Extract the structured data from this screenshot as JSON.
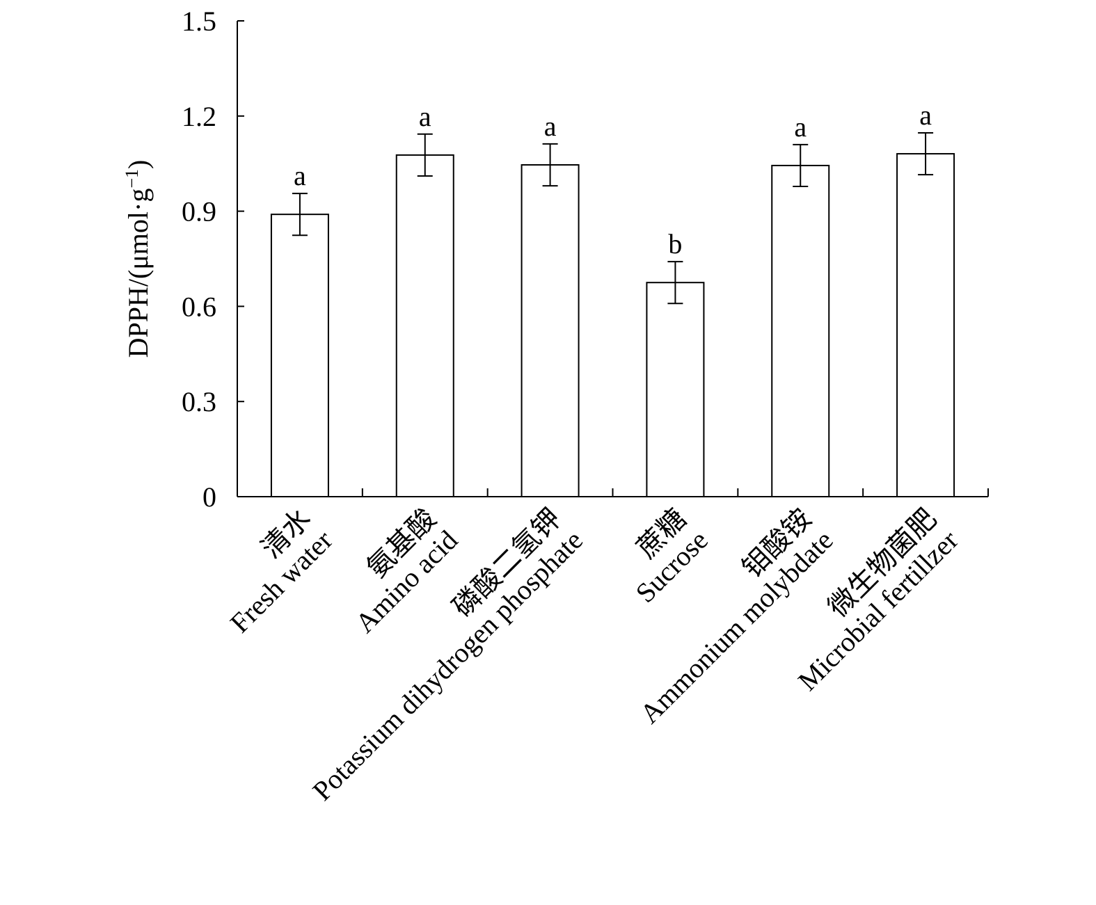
{
  "chart_data": {
    "type": "bar",
    "title": "",
    "xlabel": "",
    "ylabel": "DPPH/(μmol·g",
    "ylabel_sup": "−1",
    "ylabel_close": ")",
    "ylim": [
      0,
      1.5
    ],
    "yticks": [
      "0",
      "0.3",
      "0.6",
      "0.9",
      "1.2",
      "1.5"
    ],
    "ytick_values": [
      0,
      0.3,
      0.6,
      0.9,
      1.2,
      1.5
    ],
    "grid": false,
    "categories": [
      {
        "zh": "清水",
        "en": "Fresh water"
      },
      {
        "zh": "氨基酸",
        "en": "Amino acid"
      },
      {
        "zh": "磷酸二氢钾",
        "en": "Potassium dihydrogen phosphate"
      },
      {
        "zh": "蔗糖",
        "en": "Sucrose"
      },
      {
        "zh": "钼酸铵",
        "en": "Ammonium molybdate"
      },
      {
        "zh": "微生物菌肥",
        "en": "Microbial fertillzer"
      }
    ],
    "values": [
      0.89,
      1.077,
      1.046,
      0.675,
      1.044,
      1.081
    ],
    "errors": [
      0.066,
      0.066,
      0.066,
      0.066,
      0.066,
      0.066
    ],
    "significance": [
      "a",
      "a",
      "a",
      "b",
      "a",
      "a"
    ]
  }
}
